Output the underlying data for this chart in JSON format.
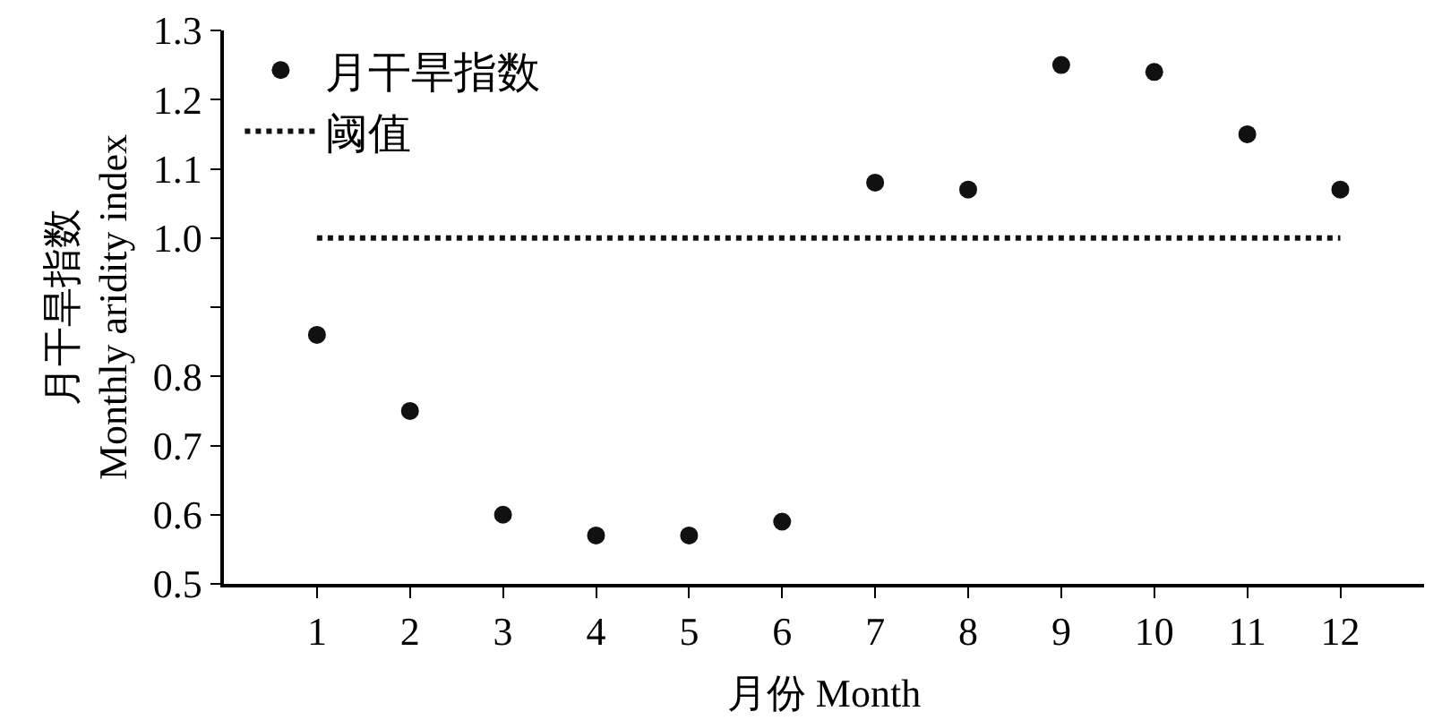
{
  "chart_data": {
    "type": "scatter",
    "xlabel": "月份 Month",
    "ylabel": "月干旱指数\nMonthly aridity index",
    "x": [
      1,
      2,
      3,
      4,
      5,
      6,
      7,
      8,
      9,
      10,
      11,
      12
    ],
    "xlim": [
      0,
      12.9
    ],
    "xticks": [
      1,
      2,
      3,
      4,
      5,
      6,
      7,
      8,
      9,
      10,
      11,
      12
    ],
    "ylim": [
      0.5,
      1.3
    ],
    "yticks": [
      {
        "value": 0.5,
        "label": "0.5"
      },
      {
        "value": 0.6,
        "label": "0.6"
      },
      {
        "value": 0.7,
        "label": "0.7"
      },
      {
        "value": 0.8,
        "label": "0.8"
      },
      {
        "value": 0.9,
        "label": null
      },
      {
        "value": 1.0,
        "label": "1.0"
      },
      {
        "value": 1.1,
        "label": "1.1"
      },
      {
        "value": 1.2,
        "label": "1.2"
      },
      {
        "value": 1.3,
        "label": "1.3"
      }
    ],
    "series": [
      {
        "name": "月干旱指数",
        "color": "#111111",
        "marker": "circle",
        "values": [
          0.86,
          0.75,
          0.6,
          0.57,
          0.57,
          0.59,
          1.08,
          1.07,
          1.25,
          1.24,
          1.15,
          1.07
        ]
      },
      {
        "name": "阈值",
        "type": "line",
        "color": "#111111",
        "line_style": "dotted",
        "marker": "none",
        "x": [
          1,
          12
        ],
        "values": [
          1.0,
          1.0
        ]
      }
    ],
    "legend": "top left"
  }
}
